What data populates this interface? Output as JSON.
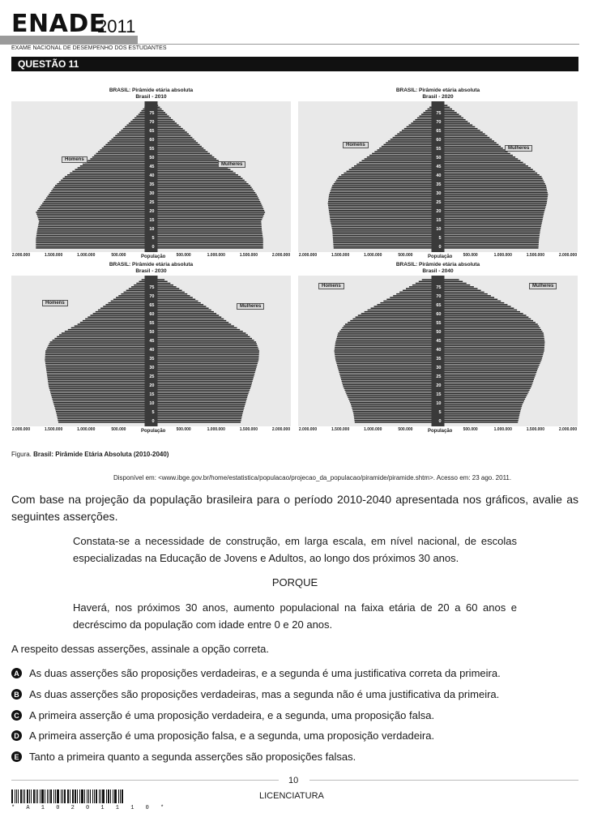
{
  "header": {
    "brand": "ENADE",
    "year": "2011",
    "subtitle": "EXAME NACIONAL DE DESEMPENHO DOS ESTUDANTES",
    "question": "QUESTÃO 11"
  },
  "colors": {
    "ink": "#1a1a1a",
    "bar": "#111111",
    "plot_bg": "#e9e9e9",
    "header_grey": "#9a9a9a"
  },
  "chart_data": [
    {
      "type": "bar",
      "title": "BRASIL: Pirâmide etária absoluta",
      "subtitle": "Brasil - 2010",
      "xlabel": "População",
      "xlim": [
        -2000000,
        2000000
      ],
      "x_tick_labels": [
        "2.000.000",
        "1.500.000",
        "1.000.000",
        "500.000",
        "0",
        "500.000",
        "1.000.000",
        "1.500.000",
        "2.000.000"
      ],
      "age_tick_labels": [
        "0",
        "5",
        "10",
        "15",
        "20",
        "25",
        "30",
        "35",
        "40",
        "45",
        "50",
        "55",
        "60",
        "65",
        "70",
        "75"
      ],
      "series_labels": {
        "left": "Homens",
        "right": "Mulheres"
      },
      "ages": [
        0,
        5,
        10,
        15,
        20,
        25,
        30,
        35,
        40,
        45,
        50,
        55,
        60,
        65,
        70,
        75,
        80
      ],
      "male": [
        1800000,
        1800000,
        1780000,
        1750000,
        1800000,
        1700000,
        1600000,
        1500000,
        1350000,
        1150000,
        950000,
        800000,
        650000,
        500000,
        350000,
        200000,
        80000
      ],
      "female": [
        1750000,
        1750000,
        1730000,
        1720000,
        1780000,
        1720000,
        1650000,
        1550000,
        1400000,
        1200000,
        1020000,
        850000,
        700000,
        560000,
        400000,
        250000,
        110000
      ]
    },
    {
      "type": "bar",
      "title": "BRASIL: Pirâmide etária absoluta",
      "subtitle": "Brasil - 2020",
      "xlabel": "População",
      "xlim": [
        -2000000,
        2000000
      ],
      "x_tick_labels": [
        "2.000.000",
        "1.500.000",
        "1.000.000",
        "500.000",
        "0",
        "500.000",
        "1.000.000",
        "1.500.000",
        "2.000.000"
      ],
      "age_tick_labels": [
        "0",
        "5",
        "10",
        "15",
        "20",
        "25",
        "30",
        "35",
        "40",
        "45",
        "50",
        "55",
        "60",
        "65",
        "70",
        "75"
      ],
      "series_labels": {
        "left": "Homens",
        "right": "Mulheres"
      },
      "ages": [
        0,
        5,
        10,
        15,
        20,
        25,
        30,
        35,
        40,
        45,
        50,
        55,
        60,
        65,
        70,
        75,
        80
      ],
      "male": [
        1630000,
        1640000,
        1650000,
        1680000,
        1700000,
        1720000,
        1700000,
        1650000,
        1550000,
        1350000,
        1150000,
        950000,
        780000,
        600000,
        420000,
        260000,
        100000
      ],
      "female": [
        1570000,
        1580000,
        1600000,
        1630000,
        1660000,
        1700000,
        1720000,
        1690000,
        1620000,
        1450000,
        1250000,
        1050000,
        880000,
        700000,
        500000,
        330000,
        150000
      ]
    },
    {
      "type": "bar",
      "title": "BRASIL: Pirâmide etária absoluta",
      "subtitle": "Brasil - 2030",
      "xlabel": "População",
      "xlim": [
        -2000000,
        2000000
      ],
      "x_tick_labels": [
        "2.000.000",
        "1.500.000",
        "1.000.000",
        "500.000",
        "0",
        "500.000",
        "1.000.000",
        "1.500.000",
        "2.000.000"
      ],
      "age_tick_labels": [
        "0",
        "5",
        "10",
        "15",
        "20",
        "25",
        "30",
        "35",
        "40",
        "45",
        "50",
        "55",
        "60",
        "65",
        "70",
        "75"
      ],
      "series_labels": {
        "left": "Homens",
        "right": "Mulheres"
      },
      "ages": [
        0,
        5,
        10,
        15,
        20,
        25,
        30,
        35,
        40,
        45,
        50,
        55,
        60,
        65,
        70,
        75,
        80
      ],
      "male": [
        1450000,
        1480000,
        1520000,
        1560000,
        1600000,
        1620000,
        1640000,
        1660000,
        1650000,
        1580000,
        1400000,
        1150000,
        950000,
        750000,
        550000,
        350000,
        150000
      ],
      "female": [
        1400000,
        1430000,
        1470000,
        1510000,
        1560000,
        1600000,
        1640000,
        1680000,
        1690000,
        1640000,
        1480000,
        1250000,
        1060000,
        860000,
        650000,
        440000,
        210000
      ]
    },
    {
      "type": "bar",
      "title": "BRASIL: Pirâmide etária absoluta",
      "subtitle": "Brasil - 2040",
      "xlabel": "População",
      "xlim": [
        -2000000,
        2000000
      ],
      "x_tick_labels": [
        "2.000.000",
        "1.500.000",
        "1.000.000",
        "500.000",
        "0",
        "500.000",
        "1.000.000",
        "1.500.000",
        "2.000.000"
      ],
      "age_tick_labels": [
        "0",
        "5",
        "10",
        "15",
        "20",
        "25",
        "30",
        "35",
        "40",
        "45",
        "50",
        "55",
        "60",
        "65",
        "70",
        "75"
      ],
      "series_labels": {
        "left": "Homens",
        "right": "Mulheres"
      },
      "ages": [
        0,
        5,
        10,
        15,
        20,
        25,
        30,
        35,
        40,
        45,
        50,
        55,
        60,
        65,
        70,
        75,
        80
      ],
      "male": [
        1300000,
        1320000,
        1360000,
        1420000,
        1480000,
        1520000,
        1560000,
        1600000,
        1620000,
        1600000,
        1560000,
        1450000,
        1250000,
        1000000,
        750000,
        500000,
        250000
      ],
      "female": [
        1250000,
        1280000,
        1320000,
        1390000,
        1460000,
        1510000,
        1560000,
        1620000,
        1660000,
        1670000,
        1650000,
        1560000,
        1380000,
        1140000,
        880000,
        620000,
        330000
      ]
    }
  ],
  "figure": {
    "caption_prefix": "Figura.",
    "caption": "Brasil: Pirâmide Etária Absoluta (2010-2040)",
    "source": "Disponível em: <www.ibge.gov.br/home/estatistica/populacao/projecao_da_populacao/piramide/piramide.shtm>. Acesso em: 23 ago. 2011."
  },
  "body": {
    "intro": "Com base na projeção da população brasileira para o período 2010-2040 apresentada nos gráficos, avalie as seguintes asserções.",
    "assertion1": "Constata-se a necessidade de construção, em larga escala, em nível nacional, de escolas especializadas na Educação de Jovens e Adultos, ao longo dos próximos 30 anos.",
    "porque": "PORQUE",
    "assertion2": "Haverá, nos próximos 30 anos, aumento populacional na faixa etária de 20 a 60 anos e decréscimo da população com idade entre 0 e 20 anos.",
    "ask": "A respeito dessas asserções, assinale a opção correta."
  },
  "options": [
    {
      "letter": "A",
      "text": "As duas asserções são proposições verdadeiras, e a segunda é uma justificativa correta da primeira."
    },
    {
      "letter": "B",
      "text": "As duas asserções são proposições verdadeiras, mas a segunda não é uma justificativa da primeira."
    },
    {
      "letter": "C",
      "text": "A primeira asserção é uma proposição verdadeira, e a segunda, uma proposição falsa."
    },
    {
      "letter": "D",
      "text": "A primeira asserção é uma proposição falsa, e a segunda, uma proposição verdadeira."
    },
    {
      "letter": "E",
      "text": "Tanto a primeira quanto a segunda asserções são proposições falsas."
    }
  ],
  "footer": {
    "page": "10",
    "section": "LICENCIATURA",
    "barcode_text": "* A 1 0 2 0 1 1 1 0 *"
  }
}
